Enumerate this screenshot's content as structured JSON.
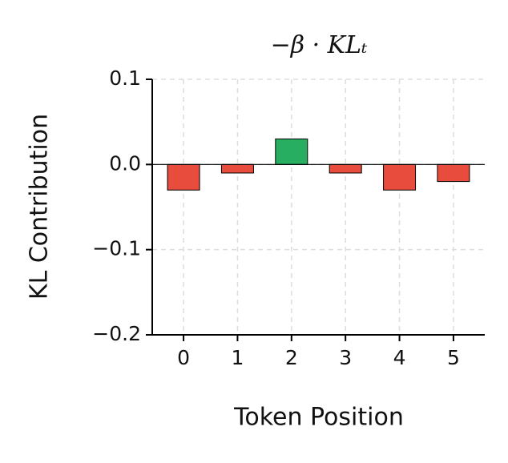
{
  "chart_data": {
    "type": "bar",
    "title": "−β · KLₜ",
    "x_label": "Token Position",
    "y_label": "KL Contribution",
    "categories": [
      "0",
      "1",
      "2",
      "3",
      "4",
      "5"
    ],
    "values": [
      -0.03,
      -0.01,
      0.03,
      -0.01,
      -0.03,
      -0.02
    ],
    "colors": [
      "#e74c3c",
      "#e74c3c",
      "#27ae60",
      "#e74c3c",
      "#e74c3c",
      "#e74c3c"
    ],
    "ylim": [
      -0.2,
      0.1
    ],
    "yticks": [
      {
        "value": -0.2,
        "label": "−0.2"
      },
      {
        "value": -0.1,
        "label": "−0.1"
      },
      {
        "value": 0.0,
        "label": "0.0"
      },
      0.1
    ],
    "grid": true
  }
}
